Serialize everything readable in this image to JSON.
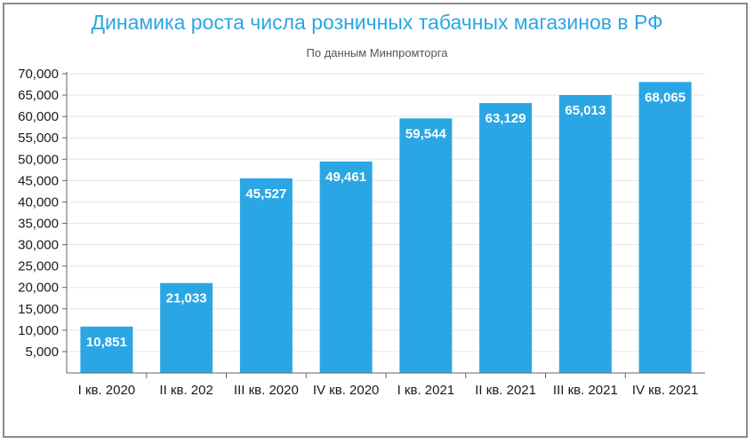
{
  "chart_data": {
    "type": "bar",
    "title": "Динамика роста числа розничных табачных магазинов в РФ",
    "subtitle": "По данным Минпромторга",
    "xlabel": "",
    "ylabel": "",
    "categories": [
      "I кв. 2020",
      "II кв. 202",
      "III кв. 2020",
      "IV кв. 2020",
      "I кв. 2021",
      "II кв. 2021",
      "III кв. 2021",
      "IV кв. 2021"
    ],
    "values": [
      10851,
      21033,
      45527,
      49461,
      59544,
      63129,
      65013,
      68065
    ],
    "value_labels": [
      "10,851",
      "21,033",
      "45,527",
      "49,461",
      "59,544",
      "63,129",
      "65,013",
      "68,065"
    ],
    "y_ticks": [
      5000,
      10000,
      15000,
      20000,
      25000,
      30000,
      35000,
      40000,
      45000,
      50000,
      55000,
      60000,
      65000,
      70000
    ],
    "y_tick_labels": [
      "5,000",
      "10,000",
      "15,000",
      "20,000",
      "25,000",
      "30,000",
      "35,000",
      "40,000",
      "45,000",
      "50,000",
      "55,000",
      "60,000",
      "65,000",
      "70,000"
    ],
    "ylim": [
      0,
      70000
    ],
    "grid": true,
    "legend": "none",
    "colors": {
      "bar": "#2aa6e4",
      "title": "#2aa6e4",
      "grid": "#e6e6e6",
      "axis": "#666666"
    }
  }
}
